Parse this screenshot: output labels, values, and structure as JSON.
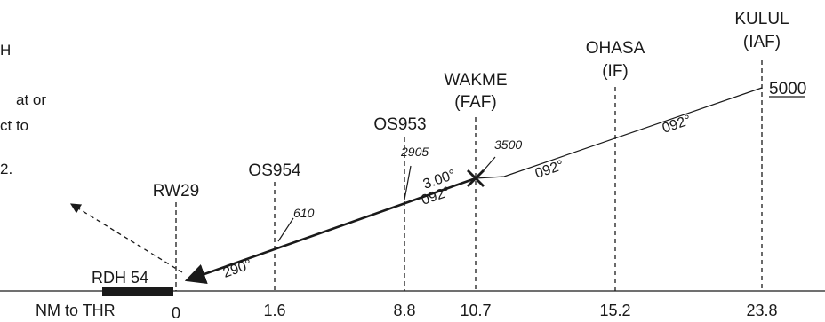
{
  "side_note": {
    "lines": [
      "H",
      "at or",
      "ct to",
      "2."
    ]
  },
  "fixes": [
    {
      "id": "rw29",
      "name": "RW29",
      "role": ""
    },
    {
      "id": "os954",
      "name": "OS954",
      "role": ""
    },
    {
      "id": "os953",
      "name": "OS953",
      "role": ""
    },
    {
      "id": "wakme",
      "name": "WAKME",
      "role": "(FAF)"
    },
    {
      "id": "ohasa",
      "name": "OHASA",
      "role": "(IF)"
    },
    {
      "id": "kulul",
      "name": "KULUL",
      "role": "(IAF)"
    }
  ],
  "distance_axis": {
    "label": "NM to THR",
    "values": [
      "0",
      "1.6",
      "8.8",
      "10.7",
      "15.2",
      "23.8"
    ]
  },
  "altitudes": {
    "os954": "610",
    "os953": "2905",
    "wakme": "3500",
    "kulul": "5000"
  },
  "courses": {
    "final_segment": "290°",
    "glidepath_angle": "3.00°",
    "glidepath_course": "092°",
    "wakme_ohasa": "092°",
    "ohasa_kulul": "092°"
  },
  "rdh": "RDH 54",
  "colors": {
    "ink": "#1a1a1a",
    "background": "#ffffff"
  }
}
